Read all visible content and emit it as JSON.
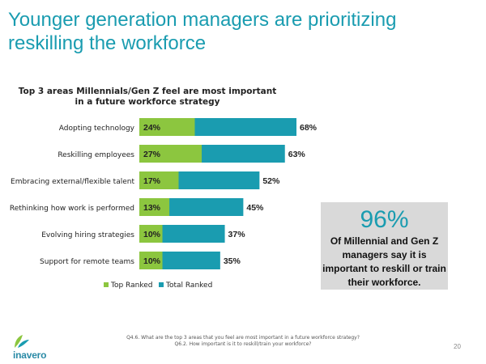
{
  "page": {
    "title_line1": "Younger generation managers are prioritizing",
    "title_line2": "reskilling the workforce",
    "page_number": "20"
  },
  "callout": {
    "stat": "96%",
    "text": "Of Millennial and Gen Z managers say it is important to reskill or train their workforce."
  },
  "footnote": {
    "line1": "Q4.6. What are the top 3 areas that you feel are most important in a future workforce strategy?",
    "line2": "Q6.2. How important is it to reskill/train your workforce?"
  },
  "logo": {
    "text": "inavero"
  },
  "colors": {
    "top_ranked": "#8cc63f",
    "total_ranked": "#1a9cb0",
    "title": "#1a9cb0"
  },
  "chart_data": {
    "type": "bar",
    "orientation": "horizontal",
    "title_line1": "Top 3 areas Millennials/Gen Z feel are most important",
    "title_line2": "in a future workforce strategy",
    "categories": [
      "Adopting technology",
      "Reskilling employees",
      "Embracing external/flexible talent",
      "Rethinking how work is performed",
      "Evolving hiring strategies",
      "Support for remote teams"
    ],
    "series": [
      {
        "name": "Top Ranked",
        "values": [
          24,
          27,
          17,
          13,
          10,
          10
        ],
        "labels": [
          "24%",
          "27%",
          "17%",
          "13%",
          "10%",
          "10%"
        ]
      },
      {
        "name": "Total Ranked",
        "values": [
          68,
          63,
          52,
          45,
          37,
          35
        ],
        "labels": [
          "68%",
          "63%",
          "52%",
          "45%",
          "37%",
          "35%"
        ]
      }
    ],
    "xlim": [
      0,
      68
    ],
    "legend": "bottom",
    "grid": false
  }
}
